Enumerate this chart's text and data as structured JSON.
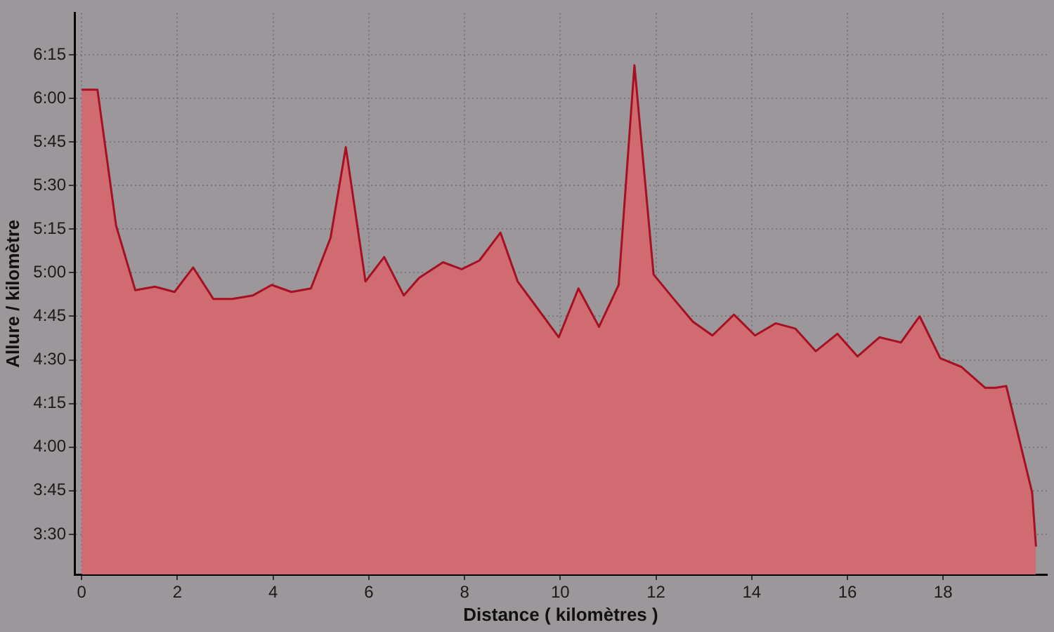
{
  "chart_data": {
    "type": "area",
    "xlabel": "Distance ( kilomètres )",
    "ylabel": "Allure / kilomètre",
    "x": [
      0,
      0.33,
      0.72,
      1.12,
      1.53,
      1.94,
      2.33,
      2.75,
      3.14,
      3.58,
      3.97,
      4.38,
      4.79,
      5.2,
      5.52,
      5.93,
      6.32,
      6.73,
      7.05,
      7.55,
      7.94,
      8.31,
      8.75,
      9.11,
      9.97,
      10.38,
      10.81,
      11.22,
      11.55,
      11.95,
      12.37,
      12.77,
      13.18,
      13.63,
      14.07,
      14.5,
      14.91,
      15.34,
      15.79,
      16.21,
      16.67,
      17.12,
      17.51,
      17.94,
      18.38,
      18.88,
      19.09,
      19.32,
      19.86,
      19.94
    ],
    "series": [
      {
        "color": "#d06b71",
        "values": [
          6.05,
          6.05,
          5.27,
          4.9,
          4.92,
          4.89,
          5.03,
          4.85,
          4.85,
          4.87,
          4.93,
          4.89,
          4.91,
          5.2,
          5.72,
          4.95,
          5.09,
          4.87,
          4.97,
          5.06,
          5.02,
          5.07,
          5.23,
          4.95,
          4.63,
          4.91,
          4.69,
          4.93,
          6.19,
          4.99,
          4.85,
          4.72,
          4.64,
          4.76,
          4.64,
          4.71,
          4.68,
          4.55,
          4.65,
          4.52,
          4.63,
          4.6,
          4.75,
          4.51,
          4.46,
          4.34,
          4.34,
          4.35,
          3.74,
          3.43
        ]
      }
    ],
    "xlim": [
      -0.15,
      20.17
    ],
    "xticks": [
      0,
      2,
      4,
      6,
      8,
      10,
      12,
      14,
      16,
      18
    ],
    "ylim": [
      3.27,
      6.49
    ],
    "yticks": [
      {
        "value": 3.5,
        "label": "3:30"
      },
      {
        "value": 3.75,
        "label": "3:45"
      },
      {
        "value": 4,
        "label": "4:00"
      },
      {
        "value": 4.25,
        "label": "4:15"
      },
      {
        "value": 4.5,
        "label": "4:30"
      },
      {
        "value": 4.75,
        "label": "4:45"
      },
      {
        "value": 5,
        "label": "5:00"
      },
      {
        "value": 5.25,
        "label": "5:15"
      },
      {
        "value": 5.5,
        "label": "5:30"
      },
      {
        "value": 5.75,
        "label": "5:45"
      },
      {
        "value": 6,
        "label": "6:00"
      },
      {
        "value": 6.25,
        "label": "6:15"
      }
    ],
    "grid": true
  }
}
